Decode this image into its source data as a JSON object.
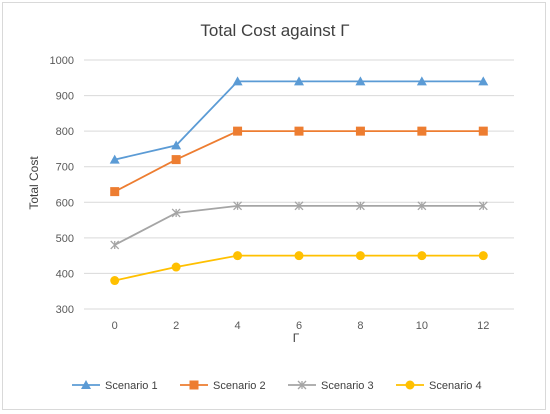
{
  "chart_data": {
    "type": "line",
    "title": "Total Cost against Γ",
    "xlabel": "Γ",
    "ylabel": "Total Cost",
    "x": [
      0,
      2,
      4,
      6,
      8,
      10,
      12
    ],
    "x_tick_labels": [
      "0",
      "2",
      "4",
      "6",
      "8",
      "10",
      "12"
    ],
    "ylim": [
      300,
      1000
    ],
    "y_ticks": [
      300,
      400,
      500,
      600,
      700,
      800,
      900,
      1000
    ],
    "grid": true,
    "legend_position": "bottom",
    "series": [
      {
        "name": "Scenario 1",
        "values": [
          720,
          760,
          940,
          940,
          940,
          940,
          940
        ],
        "color": "#5b9bd5",
        "marker": "triangle"
      },
      {
        "name": "Scenario 2",
        "values": [
          630,
          720,
          800,
          800,
          800,
          800,
          800
        ],
        "color": "#ed7d31",
        "marker": "square"
      },
      {
        "name": "Scenario 3",
        "values": [
          480,
          570,
          590,
          590,
          590,
          590,
          590
        ],
        "color": "#a5a5a5",
        "marker": "star"
      },
      {
        "name": "Scenario 4",
        "values": [
          380,
          418,
          450,
          450,
          450,
          450,
          450
        ],
        "color": "#ffc000",
        "marker": "circle"
      }
    ]
  }
}
